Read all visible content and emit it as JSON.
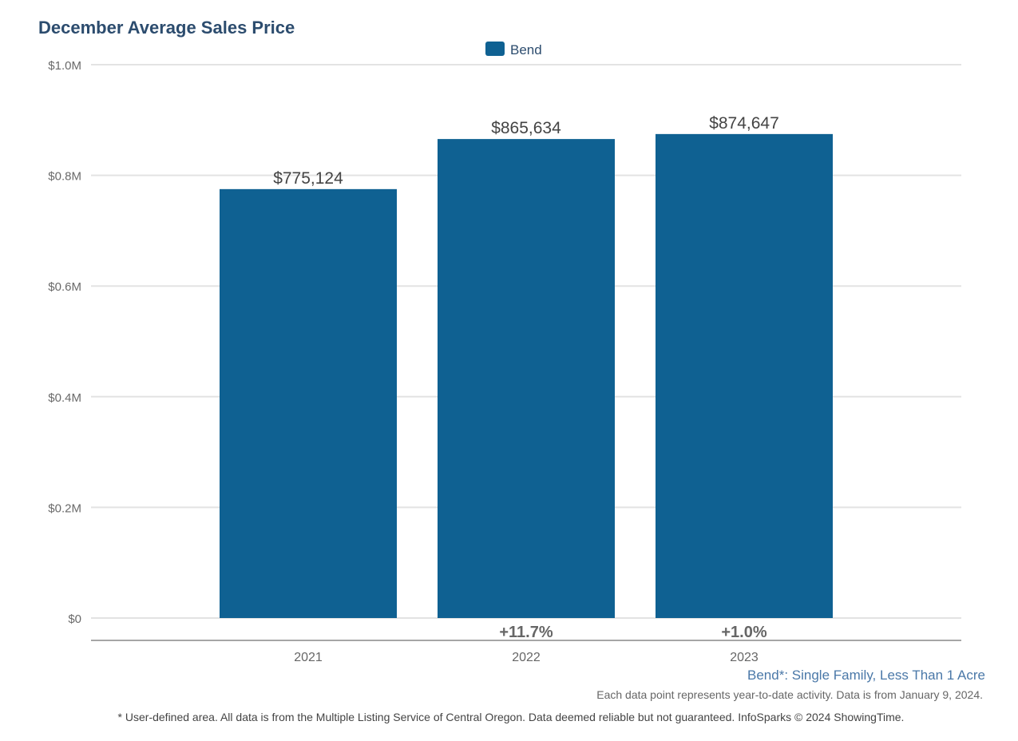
{
  "chart_data": {
    "type": "bar",
    "title": "December Average Sales Price",
    "categories": [
      "2021",
      "2022",
      "2023"
    ],
    "series": [
      {
        "name": "Bend",
        "color": "#0f6192",
        "values": [
          775124,
          865634,
          874647
        ]
      }
    ],
    "data_labels": [
      "$775,124",
      "$865,634",
      "$874,647"
    ],
    "change_labels": [
      "",
      "+11.7%",
      "+1.0%"
    ],
    "ylim": [
      0,
      1000000
    ],
    "yticks": [
      0,
      200000,
      400000,
      600000,
      800000,
      1000000
    ],
    "ytick_labels": [
      "$0",
      "$0.2M",
      "$0.4M",
      "$0.6M",
      "$0.8M",
      "$1.0M"
    ],
    "grid": true,
    "legend": "top-center",
    "xlabel": "",
    "ylabel": ""
  },
  "subtitle": "Bend*: Single Family, Less Than 1 Acre",
  "note": "Each data point represents year-to-date activity. Data is from January 9, 2024.",
  "footer": "* User-defined area. All data is from the Multiple Listing Service of Central Oregon. Data deemed reliable but not guaranteed. InfoSparks © 2024 ShowingTime."
}
